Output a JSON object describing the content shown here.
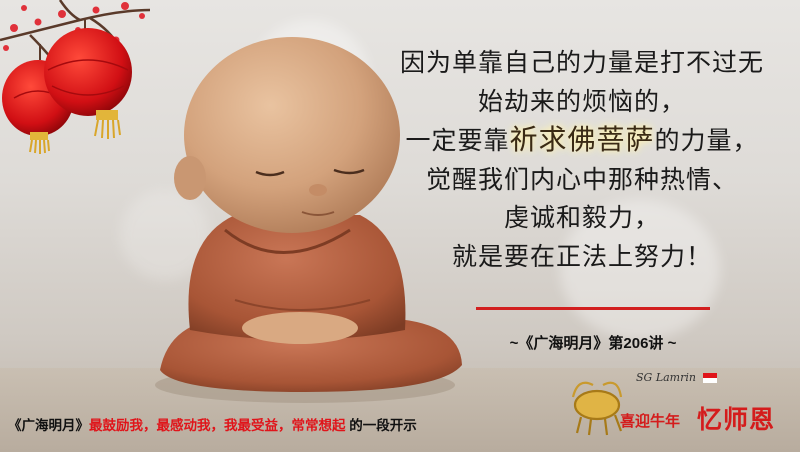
{
  "quote": {
    "line1": "因为单靠自己的力量是打不过无",
    "line2": "始劫来的烦恼的，",
    "line3_pre": "一定要靠",
    "line3_highlight": "祈求佛菩萨",
    "line3_post": "的力量，",
    "line4": "觉醒我们内心中那种热情、",
    "line5": "虔诚和毅力，",
    "line6": "就是要在正法上努力！"
  },
  "source": "~《广海明月》第206讲 ~",
  "bottom": {
    "prefix": "《广海明月》",
    "red_text": "最鼓励我，最感动我，我最受益，常常想起",
    "suffix": " 的一段开示"
  },
  "brand": {
    "script": "SG Lamrin",
    "greeting": "喜迎牛年",
    "name": "忆师恩"
  },
  "colors": {
    "accent_red": "#d21f1f",
    "highlight_glow": "#fff3b0"
  }
}
